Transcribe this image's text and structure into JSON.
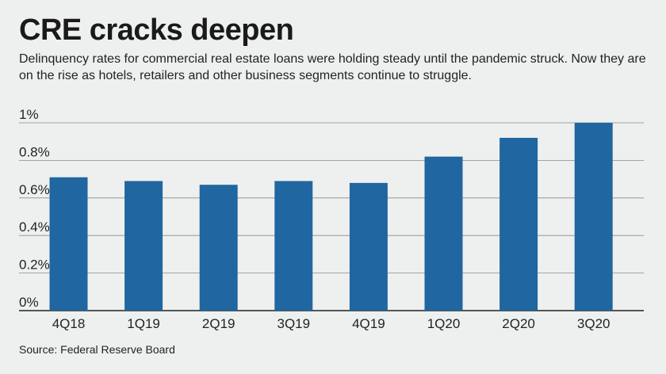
{
  "title": "CRE cracks deepen",
  "subtitle": "Delinquency rates for commercial real estate loans were holding steady until the pandemic struck. Now they are on the rise as hotels, retailers and other business segments continue to struggle.",
  "source": "Source: Federal Reserve Board",
  "colors": {
    "bar": "#2066a0",
    "grid": "#8a8a8a",
    "background": "#eef0ef"
  },
  "chart_data": {
    "type": "bar",
    "categories": [
      "4Q18",
      "1Q19",
      "2Q19",
      "3Q19",
      "4Q19",
      "1Q20",
      "2Q20",
      "3Q20"
    ],
    "values": [
      0.71,
      0.69,
      0.67,
      0.69,
      0.68,
      0.82,
      0.92,
      1.0
    ],
    "ylim": [
      0,
      1
    ],
    "yticks": [
      0,
      0.2,
      0.4,
      0.6,
      0.8,
      1.0
    ],
    "ytick_labels": [
      "0%",
      "0.2%",
      "0.4%",
      "0.6%",
      "0.8%",
      "1%"
    ],
    "grid": true,
    "legend": "none"
  }
}
